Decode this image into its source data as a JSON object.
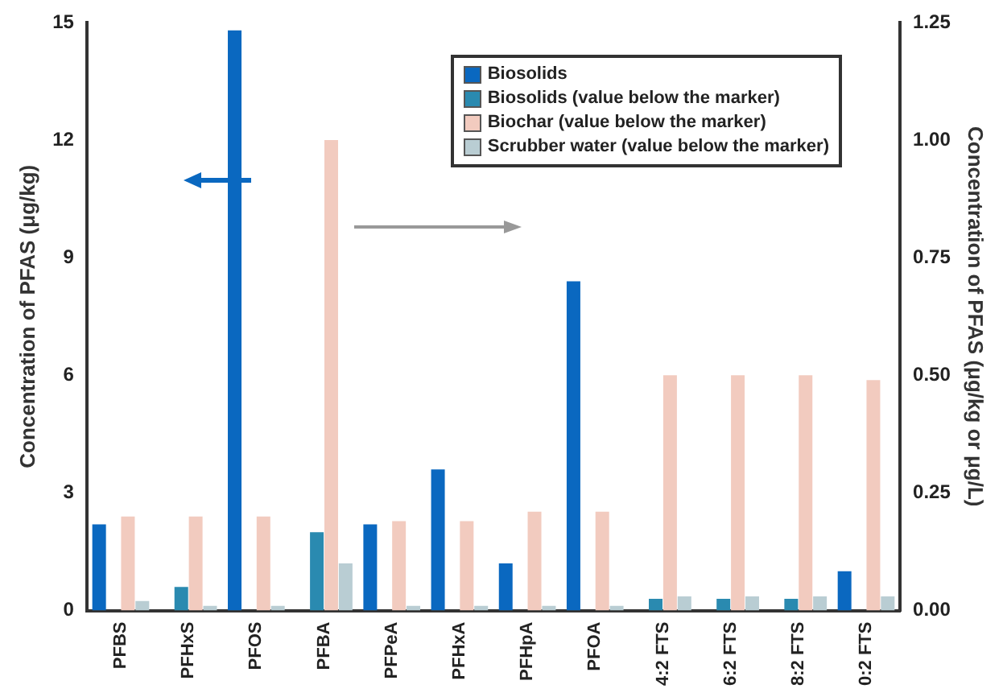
{
  "chart_data": {
    "type": "bar",
    "ylabel": "Concentration of PFAS (μg/kg)",
    "y2label": "Concentration of PFAS (μg/kg or μg/L)",
    "categories": [
      "PFBS",
      "PFHxS",
      "PFOS",
      "PFBA",
      "PFPeA",
      "PFHxA",
      "PFHpA",
      "PFOA",
      "4:2 FTS",
      "6:2 FTS",
      "8:2 FTS",
      "0:2 FTS"
    ],
    "series": [
      {
        "name": "Biosolids",
        "color": "#0a68c0",
        "values": [
          2.2,
          null,
          14.8,
          null,
          2.2,
          3.6,
          1.2,
          8.4,
          null,
          null,
          null,
          1.0
        ]
      },
      {
        "name": "Biosolids (value below the marker)",
        "color": "#2a8ab0",
        "values": [
          null,
          0.6,
          null,
          2.0,
          null,
          null,
          null,
          null,
          0.3,
          0.3,
          0.3,
          null
        ]
      },
      {
        "name": "Biochar (value below the marker)",
        "color": "#f2cbbf",
        "axis": "y2",
        "values": [
          0.2,
          0.2,
          0.2,
          1.0,
          0.19,
          0.19,
          0.21,
          0.21,
          0.5,
          0.5,
          0.5,
          0.49
        ]
      },
      {
        "name": "Scrubber water (value below the marker)",
        "color": "#b9cdd3",
        "axis": "y2",
        "values": [
          0.02,
          0.01,
          0.01,
          0.1,
          0.01,
          0.01,
          0.01,
          0.01,
          0.03,
          0.03,
          0.03,
          0.03
        ]
      }
    ],
    "ylim": [
      0,
      15
    ],
    "yticks": [
      0,
      3,
      6,
      9,
      12,
      15
    ],
    "y2lim": [
      0,
      1.25
    ],
    "y2ticks": [
      {
        "value": 0,
        "label": "0.00"
      },
      {
        "value": 0.25,
        "label": "0.25"
      },
      {
        "value": 0.5,
        "label": "0.50"
      },
      {
        "value": 0.75,
        "label": "0.75"
      },
      {
        "value": 1,
        "label": "1.00"
      },
      {
        "value": 1.25,
        "label": "1.25"
      }
    ],
    "grid": false,
    "legend": "top right"
  }
}
